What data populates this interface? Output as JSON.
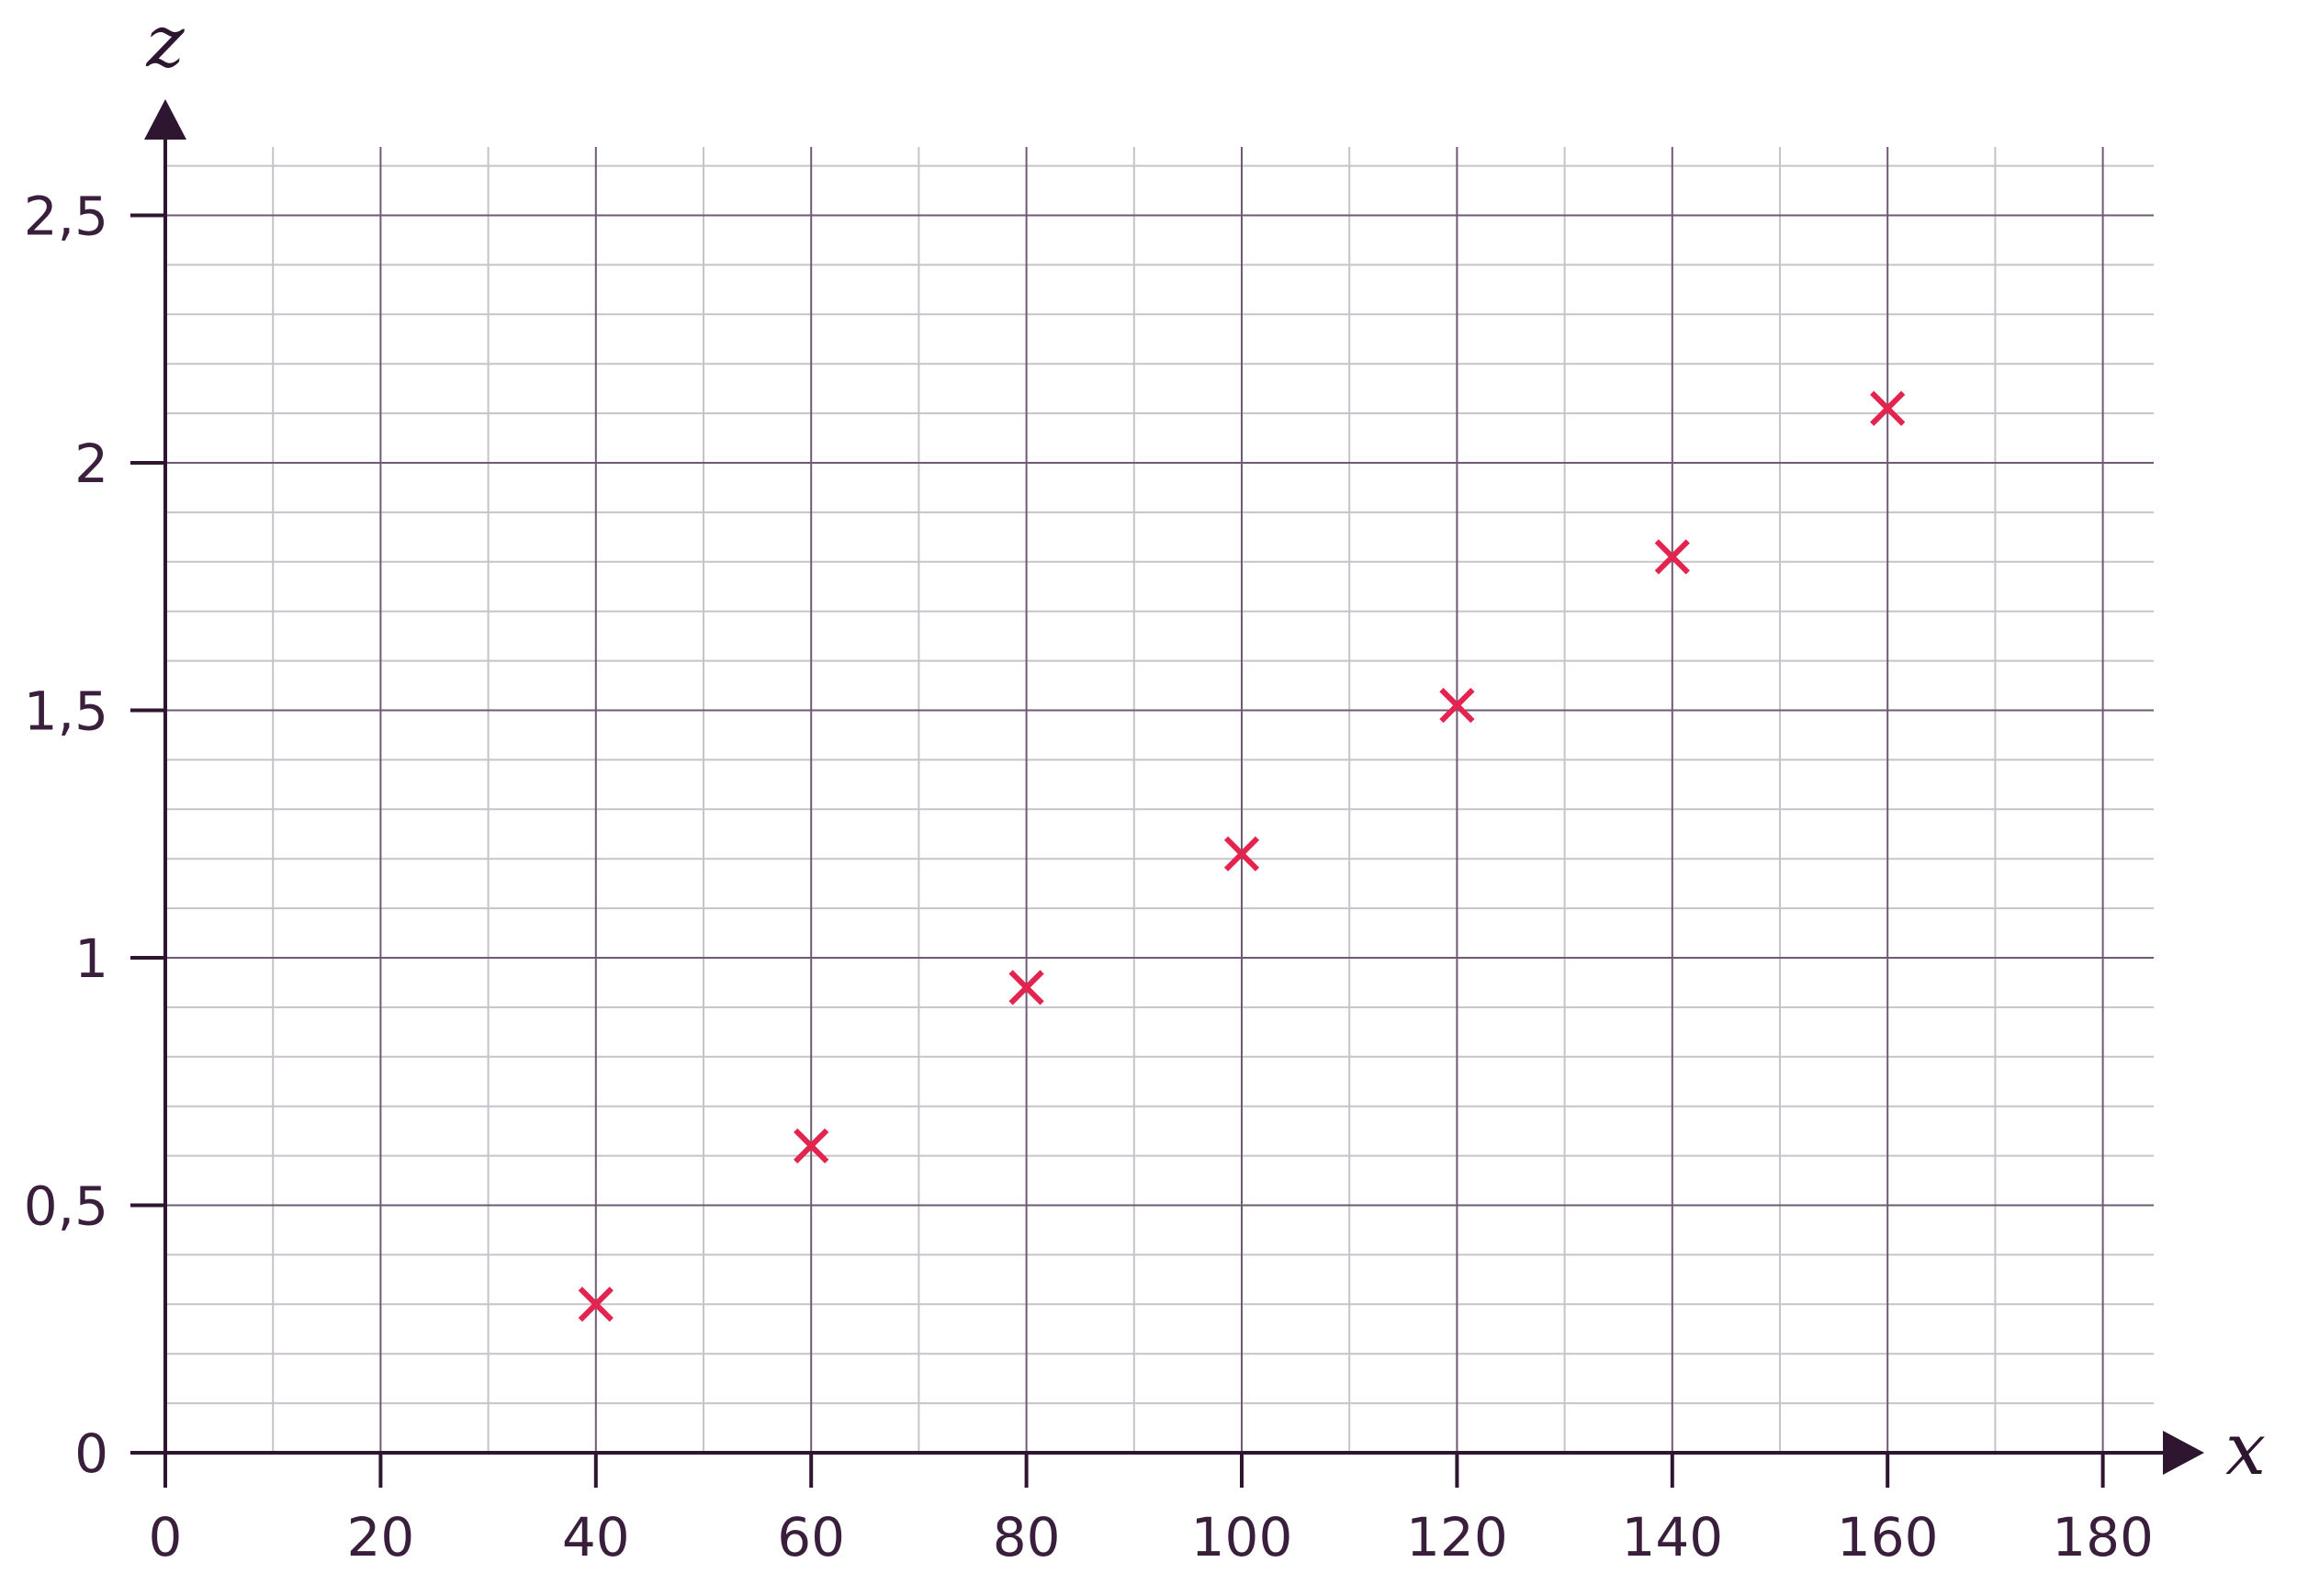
{
  "colors": {
    "axis": "#2e1630",
    "major_grid": "#6e5a72",
    "minor_grid": "#c8c2ca",
    "marker": "#e3244f",
    "text": "#3a1f3d",
    "background": "#ffffff"
  },
  "chart_data": {
    "type": "scatter",
    "title": "",
    "xlabel": "x",
    "ylabel": "z",
    "marker": "cross",
    "xlim": [
      0,
      185
    ],
    "ylim": [
      0,
      2.65
    ],
    "x_ticks": [
      0,
      20,
      40,
      60,
      80,
      100,
      120,
      140,
      160,
      180
    ],
    "x_tick_labels": [
      "0",
      "20",
      "40",
      "60",
      "80",
      "100",
      "120",
      "140",
      "160",
      "180"
    ],
    "y_ticks": [
      0,
      0.5,
      1,
      1.5,
      2,
      2.5
    ],
    "y_tick_labels": [
      "0",
      "0,5",
      "1",
      "1,5",
      "2",
      "2,5"
    ],
    "x_minor_step": 10,
    "y_minor_step": 0.1,
    "grid": true,
    "series": [
      {
        "points": [
          {
            "x": 40,
            "y": 0.3
          },
          {
            "x": 60,
            "y": 0.62
          },
          {
            "x": 80,
            "y": 0.94
          },
          {
            "x": 100,
            "y": 1.21
          },
          {
            "x": 120,
            "y": 1.51
          },
          {
            "x": 140,
            "y": 1.81
          },
          {
            "x": 160,
            "y": 2.11
          }
        ]
      }
    ]
  }
}
